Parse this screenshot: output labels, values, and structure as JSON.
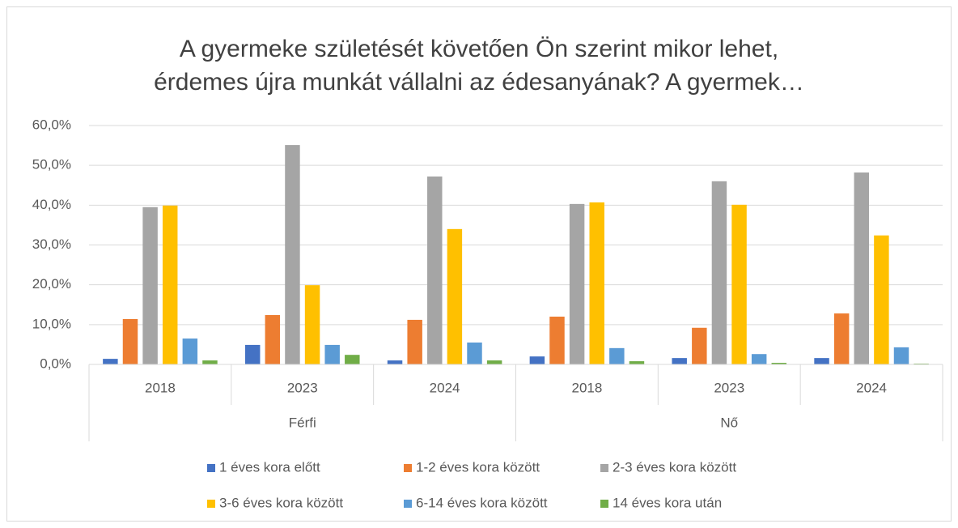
{
  "chart_data": {
    "type": "bar",
    "title": [
      "A gyermeke születését követően Ön szerint mikor lehet,",
      "érdemes újra munkát vállalni az édesanyának? A gyermek…"
    ],
    "groups": [
      {
        "name": "Férfi",
        "categories": [
          "2018",
          "2023",
          "2024"
        ]
      },
      {
        "name": "Nő",
        "categories": [
          "2018",
          "2023",
          "2024"
        ]
      }
    ],
    "series": [
      {
        "name": "1 éves kora előtt",
        "color": "#4472c4",
        "values": [
          1.4,
          4.9,
          1.0,
          2.0,
          1.6,
          1.6
        ]
      },
      {
        "name": "1-2 éves kora között",
        "color": "#ed7d31",
        "values": [
          11.4,
          12.4,
          11.2,
          12.0,
          9.2,
          12.8
        ]
      },
      {
        "name": "2-3 éves kora között",
        "color": "#a5a5a5",
        "values": [
          39.5,
          55.1,
          47.2,
          40.3,
          46.0,
          48.2
        ]
      },
      {
        "name": "3-6 éves kora között",
        "color": "#ffc000",
        "values": [
          39.9,
          19.9,
          34.0,
          40.7,
          40.1,
          32.4
        ]
      },
      {
        "name": "6-14 éves kora között",
        "color": "#5b9bd5",
        "values": [
          6.5,
          4.9,
          5.5,
          4.1,
          2.6,
          4.3
        ]
      },
      {
        "name": "14 éves kora után",
        "color": "#70ad47",
        "values": [
          1.0,
          2.4,
          1.0,
          0.8,
          0.4,
          0.2
        ]
      }
    ],
    "ylim": [
      0,
      60
    ],
    "yticks": [
      {
        "value": 0,
        "label": "0,0%"
      },
      {
        "value": 10,
        "label": "10,0%"
      },
      {
        "value": 20,
        "label": "20,0%"
      },
      {
        "value": 30,
        "label": "30,0%"
      },
      {
        "value": 40,
        "label": "40,0%"
      },
      {
        "value": 50,
        "label": "50,0%"
      },
      {
        "value": 60,
        "label": "60,0%"
      }
    ],
    "grid": true
  }
}
